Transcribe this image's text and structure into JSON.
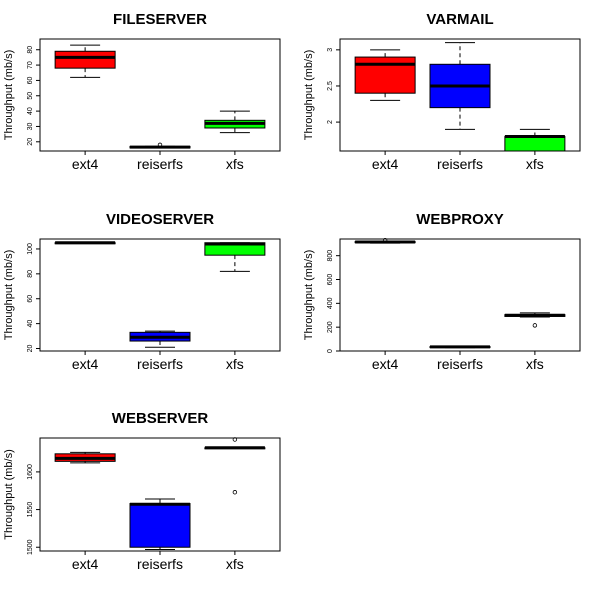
{
  "chart_data": [
    {
      "type": "boxplot",
      "title": "FILESERVER",
      "ylabel": "Throughput (mb/s)",
      "ylim": [
        14,
        87
      ],
      "yticks": [
        20,
        30,
        40,
        50,
        60,
        70,
        80
      ],
      "categories": [
        "ext4",
        "reiserfs",
        "xfs"
      ],
      "colors": [
        "#ff0000",
        "#0000ff",
        "#00ff00"
      ],
      "boxes": [
        {
          "min": 62,
          "q1": 68,
          "median": 75,
          "q3": 79,
          "max": 83,
          "outliers": []
        },
        {
          "min": 16,
          "q1": 16,
          "median": 16.5,
          "q3": 17,
          "max": 17,
          "outliers": [
            18
          ]
        },
        {
          "min": 26,
          "q1": 29,
          "median": 32,
          "q3": 34,
          "max": 40,
          "outliers": []
        }
      ]
    },
    {
      "type": "boxplot",
      "title": "VARMAIL",
      "ylabel": "Throughput (mb/s)",
      "ylim": [
        1.6,
        3.15
      ],
      "yticks": [
        2.0,
        2.5,
        3.0
      ],
      "categories": [
        "ext4",
        "reiserfs",
        "xfs"
      ],
      "colors": [
        "#ff0000",
        "#0000ff",
        "#00ff00"
      ],
      "boxes": [
        {
          "min": 2.3,
          "q1": 2.4,
          "median": 2.8,
          "q3": 2.9,
          "max": 3.0,
          "outliers": []
        },
        {
          "min": 1.9,
          "q1": 2.2,
          "median": 2.5,
          "q3": 2.8,
          "max": 3.1,
          "outliers": []
        },
        {
          "min": 1.6,
          "q1": 1.6,
          "median": 1.8,
          "q3": 1.8,
          "max": 1.9,
          "outliers": []
        }
      ]
    },
    {
      "type": "boxplot",
      "title": "VIDEOSERVER",
      "ylabel": "Throughput (mb/s)",
      "ylim": [
        18,
        108
      ],
      "yticks": [
        20,
        40,
        60,
        80,
        100
      ],
      "categories": [
        "ext4",
        "reiserfs",
        "xfs"
      ],
      "colors": [
        "#ff0000",
        "#0000ff",
        "#00ff00"
      ],
      "boxes": [
        {
          "min": 105,
          "q1": 105,
          "median": 105,
          "q3": 105,
          "max": 105,
          "outliers": []
        },
        {
          "min": 21,
          "q1": 26,
          "median": 29,
          "q3": 33,
          "max": 34,
          "outliers": []
        },
        {
          "min": 82,
          "q1": 95,
          "median": 104,
          "q3": 105,
          "max": 105,
          "outliers": []
        }
      ]
    },
    {
      "type": "boxplot",
      "title": "WEBPROXY",
      "ylabel": "Throughput (mb/s)",
      "ylim": [
        0,
        940
      ],
      "yticks": [
        0,
        200,
        400,
        600,
        800
      ],
      "categories": [
        "ext4",
        "reiserfs",
        "xfs"
      ],
      "colors": [
        "#ff0000",
        "#0000ff",
        "#00ff00"
      ],
      "boxes": [
        {
          "min": 905,
          "q1": 910,
          "median": 915,
          "q3": 918,
          "max": 920,
          "outliers": [
            930
          ]
        },
        {
          "min": 28,
          "q1": 32,
          "median": 35,
          "q3": 37,
          "max": 40,
          "outliers": []
        },
        {
          "min": 285,
          "q1": 290,
          "median": 300,
          "q3": 305,
          "max": 320,
          "outliers": [
            215
          ]
        }
      ]
    },
    {
      "type": "boxplot",
      "title": "WEBSERVER",
      "ylabel": "Throughput (mb/s)",
      "ylim": [
        1495,
        1645
      ],
      "yticks": [
        1500,
        1550,
        1600
      ],
      "categories": [
        "ext4",
        "reiserfs",
        "xfs"
      ],
      "colors": [
        "#ff0000",
        "#0000ff",
        "#00ff00"
      ],
      "boxes": [
        {
          "min": 1612,
          "q1": 1614,
          "median": 1618,
          "q3": 1624,
          "max": 1626,
          "outliers": []
        },
        {
          "min": 1497,
          "q1": 1500,
          "median": 1557,
          "q3": 1558,
          "max": 1564,
          "outliers": []
        },
        {
          "min": 1631,
          "q1": 1631,
          "median": 1632,
          "q3": 1632,
          "max": 1632,
          "outliers": [
            1643,
            1573
          ]
        }
      ]
    }
  ]
}
